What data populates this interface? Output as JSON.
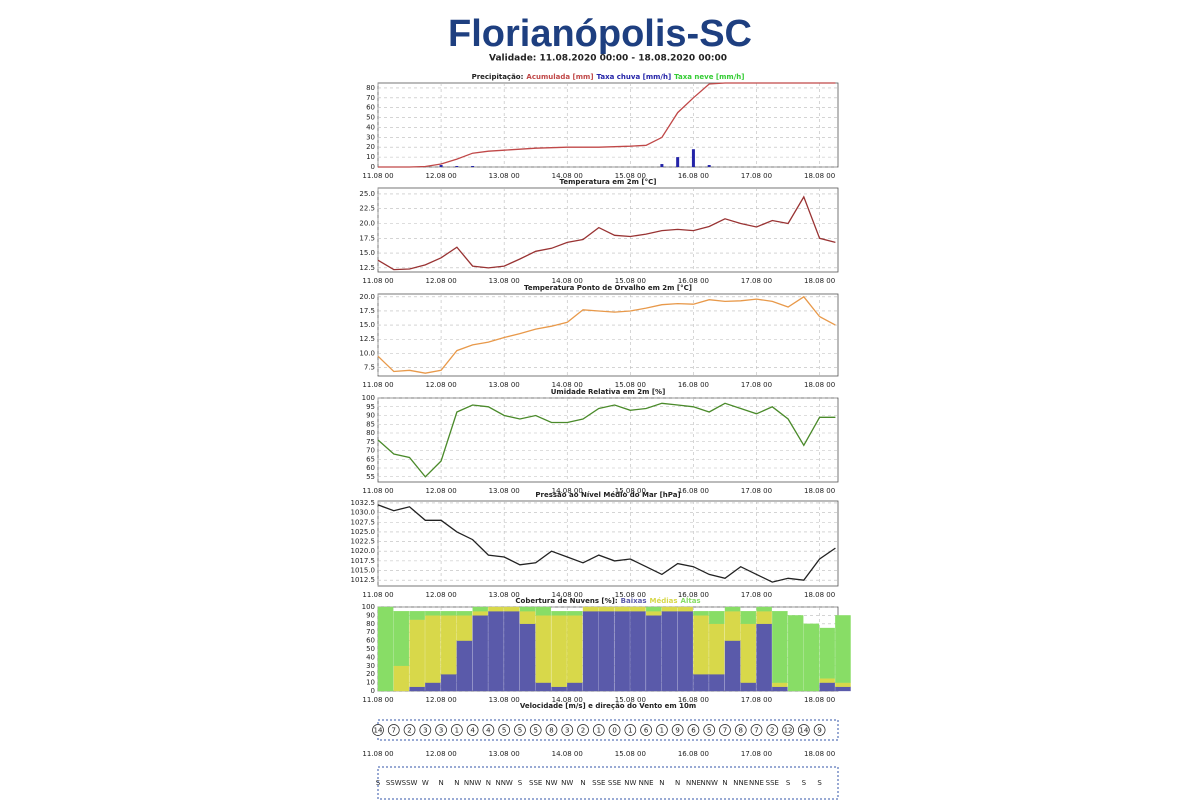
{
  "page_title": "Florianópolis-SC",
  "validity": "Validade: 11.08.2020 00:00 - 18.08.2020 00:00",
  "chart_data": [
    {
      "type": "combo",
      "title": "Precipitação:",
      "xlim": [
        0,
        175
      ],
      "ylim": [
        0,
        85
      ],
      "yticks": [
        0,
        10,
        20,
        30,
        40,
        50,
        60,
        70,
        80
      ],
      "grid": true,
      "x": [
        0,
        6,
        12,
        18,
        24,
        30,
        36,
        42,
        48,
        54,
        60,
        66,
        72,
        78,
        84,
        90,
        96,
        102,
        108,
        114,
        120,
        126,
        132,
        138,
        144,
        150,
        156,
        162,
        168,
        174
      ],
      "xticks": [
        {
          "value": 0,
          "label": "11.08 00"
        },
        {
          "value": 24,
          "label": "12.08 00"
        },
        {
          "value": 48,
          "label": "13.08 00"
        },
        {
          "value": 72,
          "label": "14.08 00"
        },
        {
          "value": 96,
          "label": "15.08 00"
        },
        {
          "value": 120,
          "label": "16.08 00"
        },
        {
          "value": 144,
          "label": "17.08 00"
        },
        {
          "value": 168,
          "label": "18.08 00"
        }
      ],
      "series": [
        {
          "name": "Acumulada [mm]",
          "type": "line",
          "color": "#c04848",
          "values": [
            0,
            0,
            0,
            0.5,
            3,
            8,
            14,
            16,
            17,
            18,
            19,
            19.5,
            20,
            20,
            20,
            20.5,
            21,
            22,
            30,
            55,
            70,
            84,
            85,
            85,
            85,
            85,
            85,
            85,
            85,
            85
          ]
        },
        {
          "name": "Taxa chuva [mm/h]",
          "type": "bar",
          "color": "#2424a8",
          "values": [
            0,
            0,
            0,
            0,
            2,
            1,
            1,
            0,
            0,
            0,
            0,
            0,
            0,
            0,
            0,
            0,
            0,
            0,
            3,
            10,
            18,
            2,
            0,
            0,
            0,
            0,
            0,
            0,
            0,
            0
          ]
        },
        {
          "name": "Taxa neve [mm/h]",
          "type": "bar",
          "color": "#33cc33",
          "values": [
            0,
            0,
            0,
            0,
            0,
            0,
            0,
            0,
            0,
            0,
            0,
            0,
            0,
            0,
            0,
            0,
            0,
            0,
            0,
            0,
            0,
            0,
            0,
            0,
            0,
            0,
            0,
            0,
            0,
            0
          ]
        }
      ]
    },
    {
      "type": "line",
      "title": "Temperatura em 2m [°C]",
      "xlim": [
        0,
        175
      ],
      "ylim": [
        11.8,
        26
      ],
      "yticks": [
        12.5,
        {
          "value": 15,
          "label": "15.0"
        },
        17.5,
        {
          "value": 20,
          "label": "20.0"
        },
        22.5,
        {
          "value": 25,
          "label": "25.0"
        }
      ],
      "grid": true,
      "x": [
        0,
        6,
        12,
        18,
        24,
        30,
        36,
        42,
        48,
        54,
        60,
        66,
        72,
        78,
        84,
        90,
        96,
        102,
        108,
        114,
        120,
        126,
        132,
        138,
        144,
        150,
        156,
        162,
        168,
        174
      ],
      "xticks": [
        {
          "value": 0,
          "label": "11.08 00"
        },
        {
          "value": 24,
          "label": "12.08 00"
        },
        {
          "value": 48,
          "label": "13.08 00"
        },
        {
          "value": 72,
          "label": "14.08 00"
        },
        {
          "value": 96,
          "label": "15.08 00"
        },
        {
          "value": 120,
          "label": "16.08 00"
        },
        {
          "value": 144,
          "label": "17.08 00"
        },
        {
          "value": 168,
          "label": "18.08 00"
        }
      ],
      "series": [
        {
          "type": "line",
          "color": "#993333",
          "values": [
            13.8,
            12.2,
            12.3,
            13.0,
            14.2,
            16.0,
            12.8,
            12.5,
            12.8,
            14.0,
            15.3,
            15.8,
            16.8,
            17.3,
            19.3,
            18.0,
            17.8,
            18.2,
            18.8,
            19.0,
            18.8,
            19.5,
            20.8,
            20.0,
            19.4,
            20.5,
            20.0,
            24.5,
            17.5,
            16.8
          ]
        }
      ]
    },
    {
      "type": "line",
      "title": "Temperatura Ponto de Orvalho em 2m [°C]",
      "xlim": [
        0,
        175
      ],
      "ylim": [
        6,
        20.5
      ],
      "yticks": [
        7.5,
        {
          "value": 10,
          "label": "10.0"
        },
        12.5,
        {
          "value": 15,
          "label": "15.0"
        },
        17.5,
        {
          "value": 20,
          "label": "20.0"
        }
      ],
      "grid": true,
      "x": [
        0,
        6,
        12,
        18,
        24,
        30,
        36,
        42,
        48,
        54,
        60,
        66,
        72,
        78,
        84,
        90,
        96,
        102,
        108,
        114,
        120,
        126,
        132,
        138,
        144,
        150,
        156,
        162,
        168,
        174
      ],
      "xticks": [
        {
          "value": 0,
          "label": "11.08 00"
        },
        {
          "value": 24,
          "label": "12.08 00"
        },
        {
          "value": 48,
          "label": "13.08 00"
        },
        {
          "value": 72,
          "label": "14.08 00"
        },
        {
          "value": 96,
          "label": "15.08 00"
        },
        {
          "value": 120,
          "label": "16.08 00"
        },
        {
          "value": 144,
          "label": "17.08 00"
        },
        {
          "value": 168,
          "label": "18.08 00"
        }
      ],
      "series": [
        {
          "type": "line",
          "color": "#e8994a",
          "values": [
            9.5,
            6.8,
            7,
            6.5,
            7,
            10.5,
            11.5,
            12,
            12.8,
            13.5,
            14.3,
            14.8,
            15.5,
            17.7,
            17.5,
            17.3,
            17.5,
            18,
            18.6,
            18.8,
            18.7,
            19.5,
            19.2,
            19.3,
            19.6,
            19.2,
            18.2,
            20,
            16.5,
            15
          ]
        }
      ]
    },
    {
      "type": "line",
      "title": "Umidade Relativa em 2m [%]",
      "xlim": [
        0,
        175
      ],
      "ylim": [
        52,
        100
      ],
      "yticks": [
        55,
        60,
        65,
        70,
        75,
        80,
        85,
        90,
        95,
        100
      ],
      "grid": true,
      "x": [
        0,
        6,
        12,
        18,
        24,
        30,
        36,
        42,
        48,
        54,
        60,
        66,
        72,
        78,
        84,
        90,
        96,
        102,
        108,
        114,
        120,
        126,
        132,
        138,
        144,
        150,
        156,
        162,
        168,
        174
      ],
      "xticks": [
        {
          "value": 0,
          "label": "11.08 00"
        },
        {
          "value": 24,
          "label": "12.08 00"
        },
        {
          "value": 48,
          "label": "13.08 00"
        },
        {
          "value": 72,
          "label": "14.08 00"
        },
        {
          "value": 96,
          "label": "15.08 00"
        },
        {
          "value": 120,
          "label": "16.08 00"
        },
        {
          "value": 144,
          "label": "17.08 00"
        },
        {
          "value": 168,
          "label": "18.08 00"
        }
      ],
      "series": [
        {
          "type": "line",
          "color": "#4a8a2a",
          "values": [
            76,
            68,
            66,
            55,
            64,
            92,
            96,
            95,
            90,
            88,
            90,
            86,
            86,
            88,
            94,
            96,
            93,
            94,
            97,
            96,
            95,
            92,
            97,
            94,
            91,
            95,
            88,
            73,
            89,
            89
          ]
        }
      ]
    },
    {
      "type": "line",
      "title": "Pressão ao Nível Médio do Mar [hPa]",
      "xlim": [
        0,
        175
      ],
      "ylim": [
        1011,
        1033
      ],
      "yticks": [
        1012.5,
        {
          "value": 1015,
          "label": "1015.0"
        },
        1017.5,
        {
          "value": 1020,
          "label": "1020.0"
        },
        1022.5,
        {
          "value": 1025,
          "label": "1025.0"
        },
        1027.5,
        {
          "value": 1030,
          "label": "1030.0"
        },
        1032.5
      ],
      "grid": true,
      "x": [
        0,
        6,
        12,
        18,
        24,
        30,
        36,
        42,
        48,
        54,
        60,
        66,
        72,
        78,
        84,
        90,
        96,
        102,
        108,
        114,
        120,
        126,
        132,
        138,
        144,
        150,
        156,
        162,
        168,
        174
      ],
      "xticks": [
        {
          "value": 0,
          "label": "11.08 00"
        },
        {
          "value": 24,
          "label": "12.08 00"
        },
        {
          "value": 48,
          "label": "13.08 00"
        },
        {
          "value": 72,
          "label": "14.08 00"
        },
        {
          "value": 96,
          "label": "15.08 00"
        },
        {
          "value": 120,
          "label": "16.08 00"
        },
        {
          "value": 144,
          "label": "17.08 00"
        },
        {
          "value": 168,
          "label": "18.08 00"
        }
      ],
      "series": [
        {
          "type": "line",
          "color": "#222222",
          "values": [
            1032,
            1030.5,
            1031.5,
            1028,
            1028,
            1025,
            1023,
            1019,
            1018.5,
            1016.5,
            1017,
            1020,
            1018.5,
            1017,
            1019,
            1017.5,
            1018,
            1016,
            1014,
            1016.8,
            1016,
            1014,
            1013,
            1016,
            1014,
            1012,
            1013,
            1012.5,
            1018,
            1020.8
          ]
        }
      ]
    },
    {
      "type": "stacked_bar",
      "title": "Cobertura de Nuvens [%]:",
      "xlim": [
        0,
        175
      ],
      "ylim": [
        0,
        100
      ],
      "yticks": [
        0,
        10,
        20,
        30,
        40,
        50,
        60,
        70,
        80,
        90,
        100
      ],
      "grid": true,
      "x": [
        0,
        6,
        12,
        18,
        24,
        30,
        36,
        42,
        48,
        54,
        60,
        66,
        72,
        78,
        84,
        90,
        96,
        102,
        108,
        114,
        120,
        126,
        132,
        138,
        144,
        150,
        156,
        162,
        168,
        174
      ],
      "xticks": [
        {
          "value": 0,
          "label": "11.08 00"
        },
        {
          "value": 24,
          "label": "12.08 00"
        },
        {
          "value": 48,
          "label": "13.08 00"
        },
        {
          "value": 72,
          "label": "14.08 00"
        },
        {
          "value": 96,
          "label": "15.08 00"
        },
        {
          "value": 120,
          "label": "16.08 00"
        },
        {
          "value": 144,
          "label": "17.08 00"
        },
        {
          "value": 168,
          "label": "18.08 00"
        }
      ],
      "series": [
        {
          "name": "Baixas",
          "color": "#5a5aaa",
          "values": [
            0,
            0,
            5,
            10,
            20,
            60,
            90,
            95,
            95,
            80,
            10,
            5,
            10,
            95,
            95,
            95,
            95,
            90,
            95,
            95,
            20,
            20,
            60,
            10,
            80,
            5,
            0,
            0,
            10,
            5
          ]
        },
        {
          "name": "Médias",
          "color": "#d8d84a",
          "values": [
            0,
            30,
            80,
            80,
            70,
            30,
            5,
            5,
            5,
            15,
            80,
            85,
            80,
            5,
            5,
            5,
            5,
            5,
            5,
            5,
            70,
            60,
            35,
            70,
            15,
            5,
            0,
            0,
            5,
            5
          ]
        },
        {
          "name": "Altas",
          "color": "#88dd66",
          "values": [
            100,
            65,
            10,
            5,
            5,
            5,
            5,
            0,
            0,
            5,
            10,
            5,
            5,
            0,
            0,
            0,
            0,
            5,
            0,
            0,
            5,
            15,
            5,
            15,
            5,
            85,
            90,
            80,
            60,
            80
          ]
        }
      ]
    },
    {
      "type": "wind",
      "title": "Velocidade [m/s] e direção do Vento em 10m",
      "xlim": [
        0,
        175
      ],
      "x": [
        0,
        6,
        12,
        18,
        24,
        30,
        36,
        42,
        48,
        54,
        60,
        66,
        72,
        78,
        84,
        90,
        96,
        102,
        108,
        114,
        120,
        126,
        132,
        138,
        144,
        150,
        156,
        162,
        168
      ],
      "xticks": [
        {
          "value": 0,
          "label": "11.08 00"
        },
        {
          "value": 24,
          "label": "12.08 00"
        },
        {
          "value": 48,
          "label": "13.08 00"
        },
        {
          "value": 72,
          "label": "14.08 00"
        },
        {
          "value": 96,
          "label": "15.08 00"
        },
        {
          "value": 120,
          "label": "16.08 00"
        },
        {
          "value": 144,
          "label": "17.08 00"
        },
        {
          "value": 168,
          "label": "18.08 00"
        }
      ],
      "values": [
        14,
        7,
        2,
        3,
        3,
        1,
        4,
        4,
        5,
        5,
        5,
        8,
        3,
        2,
        1,
        0,
        1,
        6,
        1,
        9,
        6,
        5,
        7,
        8,
        7,
        2,
        12,
        14,
        9
      ],
      "directions": [
        "S",
        "SSW",
        "SSW",
        "W",
        "N",
        "N",
        "NNW",
        "N",
        "NNW",
        "S",
        "SSE",
        "NW",
        "NW",
        "N",
        "SSE",
        "SSE",
        "NW",
        "NNE",
        "N",
        "N",
        "NNE",
        "NNW",
        "N",
        "NNE",
        "NNE",
        "SSE",
        "S",
        "S",
        "S"
      ]
    }
  ]
}
